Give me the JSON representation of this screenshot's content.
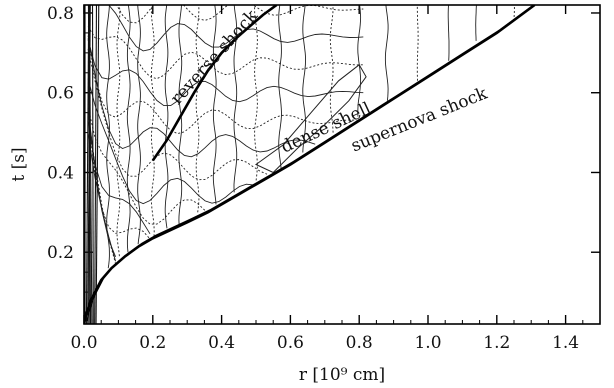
{
  "chart_data": {
    "type": "line",
    "title": "",
    "xlabel": "r [10⁹ cm]",
    "ylabel": "t [s]",
    "xlim": [
      0.0,
      1.5
    ],
    "ylim": [
      0.02,
      0.82
    ],
    "x_ticks": [
      "0.0",
      "0.2",
      "0.4",
      "0.6",
      "0.8",
      "1.0",
      "1.2",
      "1.4"
    ],
    "y_ticks": [
      "0.2",
      "0.4",
      "0.6",
      "0.8"
    ],
    "grid": false,
    "legend": "none",
    "series": [
      {
        "label": "supernova shock",
        "style": "thick",
        "x": [
          0.0,
          0.005,
          0.02,
          0.05,
          0.08,
          0.12,
          0.16,
          0.2,
          0.25,
          0.3,
          0.36,
          0.42,
          0.48,
          0.54,
          0.6,
          0.7,
          0.8,
          0.9,
          1.0,
          1.1,
          1.2,
          1.31
        ],
        "y": [
          0.02,
          0.04,
          0.08,
          0.13,
          0.16,
          0.19,
          0.215,
          0.235,
          0.255,
          0.275,
          0.3,
          0.33,
          0.36,
          0.39,
          0.42,
          0.475,
          0.53,
          0.585,
          0.64,
          0.695,
          0.75,
          0.82
        ]
      },
      {
        "label": "reverse shock",
        "style": "thick",
        "x": [
          0.2,
          0.24,
          0.28,
          0.32,
          0.36,
          0.4,
          0.44,
          0.48,
          0.52,
          0.56
        ],
        "y": [
          0.43,
          0.48,
          0.54,
          0.6,
          0.655,
          0.7,
          0.735,
          0.765,
          0.795,
          0.82
        ]
      }
    ],
    "annotations": [
      {
        "text": "reverse shock",
        "x": 0.39,
        "y": 0.68,
        "angle_deg": -48
      },
      {
        "text": "dense shell",
        "x": 0.71,
        "y": 0.5,
        "angle_deg": -25
      },
      {
        "text": "supernova shock",
        "x": 0.98,
        "y": 0.52,
        "angle_deg": -22
      }
    ]
  }
}
